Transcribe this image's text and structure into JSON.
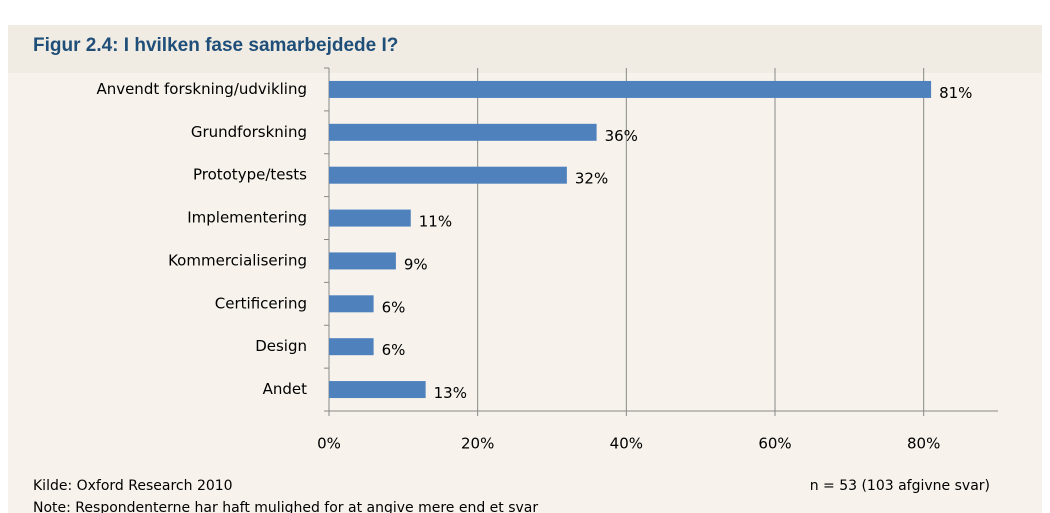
{
  "chart_data": {
    "type": "bar",
    "orientation": "horizontal",
    "title": "Figur 2.4: I hvilken fase samarbejdede I?",
    "categories": [
      "Anvendt forskning/udvikling",
      "Grundforskning",
      "Prototype/tests",
      "Implementering",
      "Kommercialisering",
      "Certificering",
      "Design",
      "Andet"
    ],
    "values": [
      81,
      36,
      32,
      11,
      9,
      6,
      6,
      13
    ],
    "value_labels": [
      "81%",
      "36%",
      "32%",
      "11%",
      "9%",
      "6%",
      "6%",
      "13%"
    ],
    "color": "#4f81bd",
    "xlim": [
      0,
      90
    ],
    "xticks": [
      {
        "value": 0,
        "label": "0%"
      },
      {
        "value": 20,
        "label": "20%"
      },
      {
        "value": 40,
        "label": "40%"
      },
      {
        "value": 60,
        "label": "60%"
      },
      {
        "value": 80,
        "label": "80%"
      }
    ],
    "grid": true,
    "source": "Kilde: Oxford Research 2010",
    "sample": "n = 53 (103 afgivne svar)",
    "note": "Note: Respondenterne har haft mulighed for at angive mere end et svar"
  }
}
